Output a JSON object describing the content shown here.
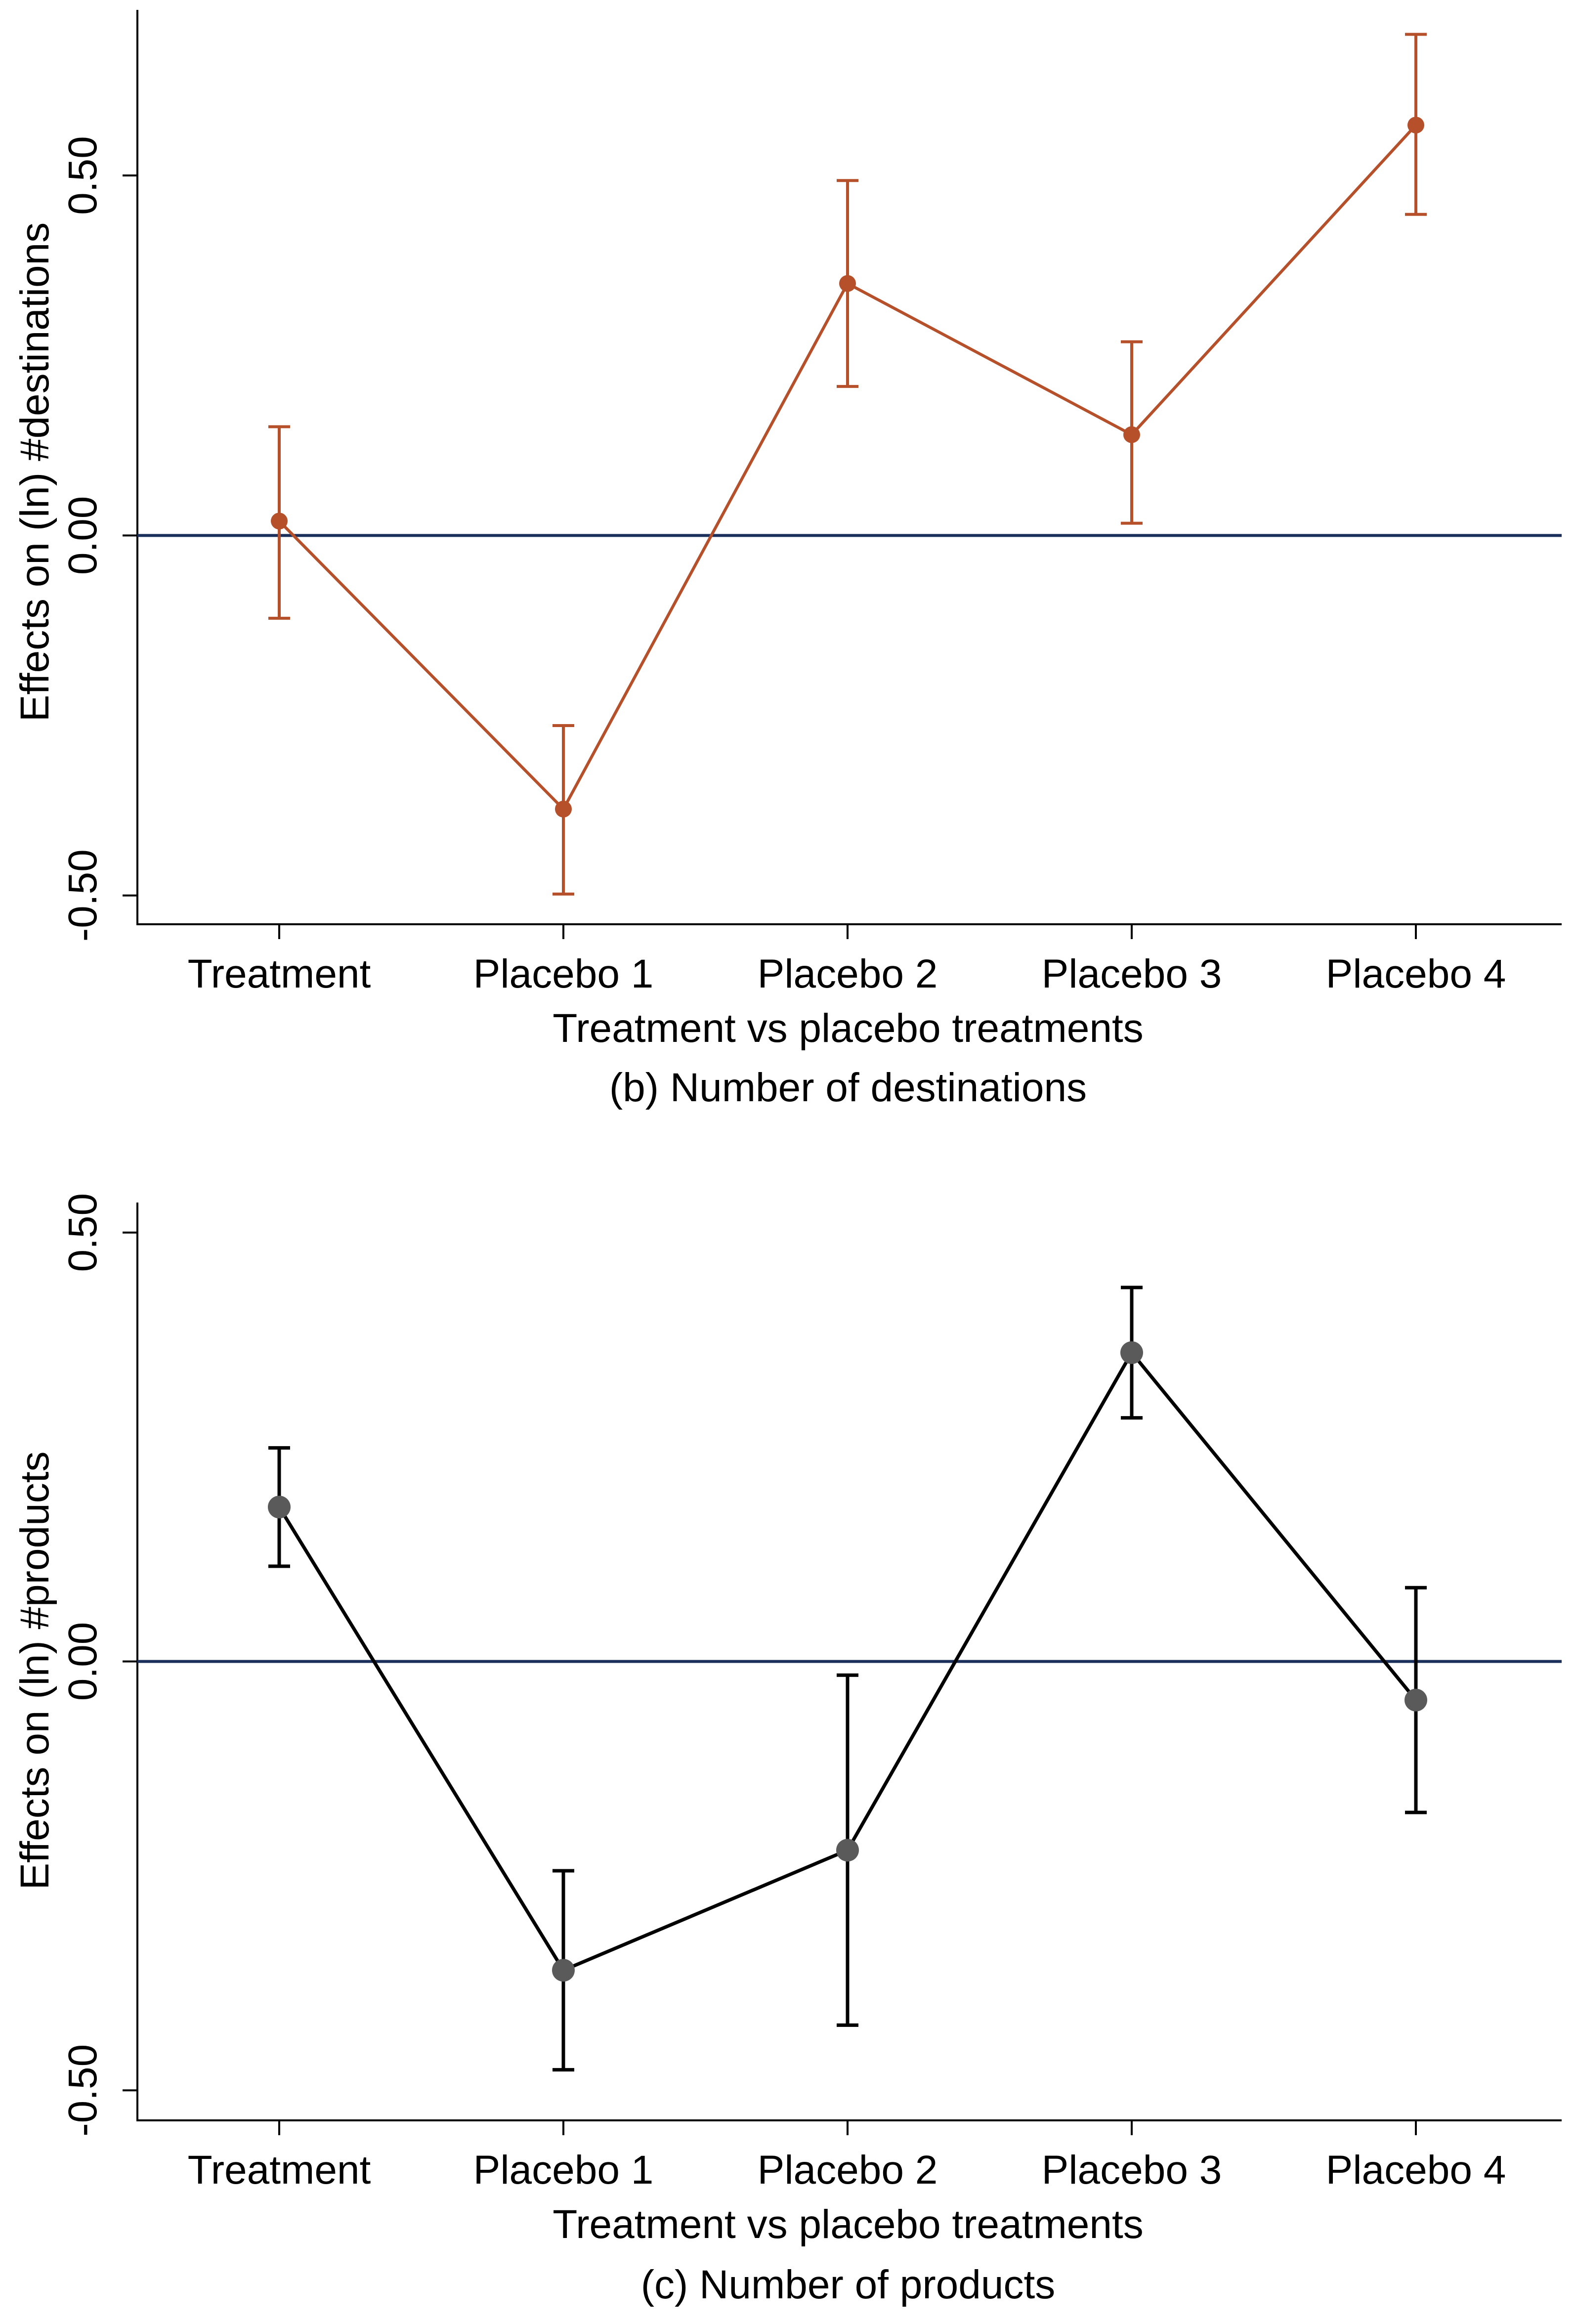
{
  "chart_data": [
    {
      "type": "line",
      "panel": "b",
      "caption": "(b) Number of destinations",
      "xlabel": "Treatment vs placebo treatments",
      "ylabel": "Effects on (ln) #destinations",
      "categories": [
        "Treatment",
        "Placebo 1",
        "Placebo 2",
        "Placebo 3",
        "Placebo 4"
      ],
      "series": [
        {
          "name": "Effects on (ln) #destinations",
          "color": "#b5502a",
          "values": [
            0.02,
            -0.38,
            0.35,
            0.14,
            0.57
          ],
          "ci_low": [
            -0.115,
            -0.498,
            0.207,
            0.017,
            0.446
          ],
          "ci_high": [
            0.151,
            -0.264,
            0.493,
            0.269,
            0.696
          ]
        }
      ],
      "yticks": [
        -0.5,
        0.0,
        0.5
      ],
      "ytick_labels": [
        "-0.50",
        "0.00",
        "0.50"
      ],
      "ylim": [
        -0.54,
        0.73
      ],
      "reference_line": {
        "y": 0.0,
        "color": "#1a2f5a"
      },
      "grid": false
    },
    {
      "type": "line",
      "panel": "c",
      "caption": "(c) Number of products",
      "xlabel": "Treatment vs placebo treatments",
      "ylabel": "Effects on (ln) #products",
      "categories": [
        "Treatment",
        "Placebo 1",
        "Placebo 2",
        "Placebo 3",
        "Placebo 4"
      ],
      "series": [
        {
          "name": "Effects on (ln) #products",
          "color": "#000000",
          "marker_color": "#5a5a5a",
          "values": [
            0.18,
            -0.36,
            -0.22,
            0.36,
            -0.045
          ],
          "ci_low": [
            0.111,
            -0.476,
            -0.424,
            0.284,
            -0.176
          ],
          "ci_high": [
            0.249,
            -0.244,
            -0.016,
            0.436,
            0.086
          ]
        }
      ],
      "yticks": [
        -0.5,
        0.0,
        0.5
      ],
      "ytick_labels": [
        "-0.50",
        "0.00",
        "0.50"
      ],
      "ylim": [
        -0.535,
        0.535
      ],
      "reference_line": {
        "y": 0.0,
        "color": "#1a2f5a"
      },
      "grid": false
    }
  ]
}
